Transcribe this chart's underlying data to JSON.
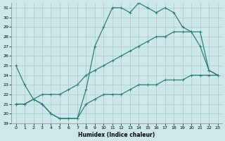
{
  "xlabel": "Humidex (Indice chaleur)",
  "bg_color": "#cce8e8",
  "grid_color": "#aacccc",
  "line_color": "#2e7d7a",
  "xlim": [
    -0.5,
    23.5
  ],
  "ylim": [
    19,
    31.5
  ],
  "yticks": [
    19,
    20,
    21,
    22,
    23,
    24,
    25,
    26,
    27,
    28,
    29,
    30,
    31
  ],
  "xticks": [
    0,
    1,
    2,
    3,
    4,
    5,
    6,
    7,
    8,
    9,
    10,
    11,
    12,
    13,
    14,
    15,
    16,
    17,
    18,
    19,
    20,
    21,
    22,
    23
  ],
  "series1": {
    "x": [
      0,
      1,
      2,
      3,
      4,
      5,
      6,
      7,
      8,
      9,
      10,
      11,
      12,
      13,
      14,
      15,
      16,
      17,
      18,
      19,
      20,
      21,
      22,
      23
    ],
    "y": [
      25,
      23,
      21.5,
      21,
      20,
      19.5,
      19.5,
      19.5,
      22.5,
      27,
      29,
      31,
      31,
      30.5,
      31.5,
      31,
      30.5,
      31,
      30.5,
      29,
      28.5,
      27,
      24.5,
      24
    ]
  },
  "series2": {
    "x": [
      0,
      1,
      2,
      3,
      4,
      5,
      6,
      7,
      8,
      9,
      10,
      11,
      12,
      13,
      14,
      15,
      16,
      17,
      18,
      19,
      20,
      21,
      22,
      23
    ],
    "y": [
      21,
      21,
      21.5,
      22,
      22,
      22,
      22.5,
      23,
      24,
      24.5,
      25,
      25.5,
      26,
      26.5,
      27,
      27.5,
      28,
      28,
      28.5,
      28.5,
      28.5,
      28.5,
      24.5,
      24
    ]
  },
  "series3": {
    "x": [
      0,
      1,
      2,
      3,
      4,
      5,
      6,
      7,
      8,
      9,
      10,
      11,
      12,
      13,
      14,
      15,
      16,
      17,
      18,
      19,
      20,
      21,
      22,
      23
    ],
    "y": [
      21,
      21,
      21.5,
      21,
      20,
      19.5,
      19.5,
      19.5,
      21,
      21.5,
      22,
      22,
      22,
      22.5,
      23,
      23,
      23,
      23.5,
      23.5,
      23.5,
      24,
      24,
      24,
      24
    ]
  }
}
